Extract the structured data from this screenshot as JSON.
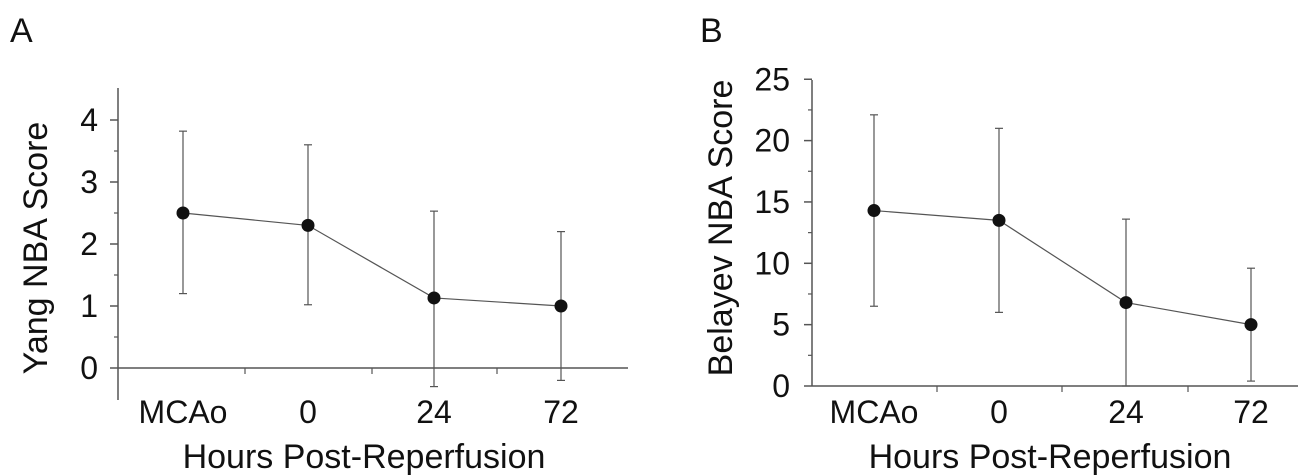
{
  "chart_data": [
    {
      "type": "line",
      "panel_label": "A",
      "categories": [
        "MCAo",
        "0",
        "24",
        "72"
      ],
      "values": [
        2.5,
        2.3,
        1.13,
        1.0
      ],
      "error_high": [
        3.82,
        3.6,
        2.53,
        2.2
      ],
      "error_low": [
        1.2,
        1.02,
        -0.3,
        -0.2
      ],
      "ylabel": "Yang NBA Score",
      "xlabel": "Hours Post-Reperfusion",
      "y_ticks": [
        "0",
        "1",
        "2",
        "3",
        "4"
      ],
      "ylim": [
        -0.5,
        4.5
      ],
      "grid": false,
      "colors": {
        "line": "#555555",
        "marker": "#111111",
        "axis": "#555555"
      }
    },
    {
      "type": "line",
      "panel_label": "B",
      "categories": [
        "MCAo",
        "0",
        "24",
        "72"
      ],
      "values": [
        14.3,
        13.5,
        6.8,
        5.0
      ],
      "error_high": [
        22.1,
        21.0,
        13.6,
        9.6
      ],
      "error_low": [
        6.5,
        6.0,
        0.0,
        0.4
      ],
      "ylabel": "Belayev NBA Score",
      "xlabel": "Hours Post-Reperfusion",
      "y_ticks": [
        "0",
        "5",
        "10",
        "15",
        "20",
        "25"
      ],
      "ylim": [
        0,
        25
      ],
      "grid": false,
      "colors": {
        "line": "#555555",
        "marker": "#111111",
        "axis": "#555555"
      }
    }
  ]
}
